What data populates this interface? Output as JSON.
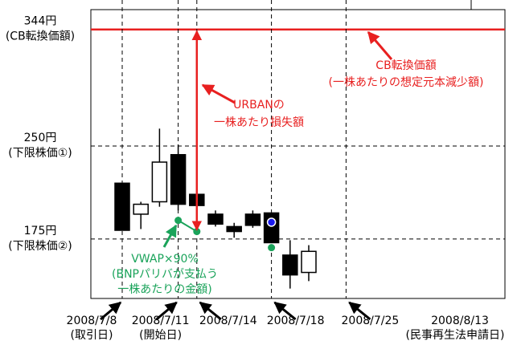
{
  "chart_data": {
    "type": "candlestick",
    "categories": [
      "2008/7/8",
      null,
      null,
      "2008/7/11",
      "2008/7/14",
      null,
      null,
      null,
      "2008/7/18",
      null,
      null,
      null,
      "2008/7/25"
    ],
    "category_notes": [
      "(取引日)",
      null,
      null,
      "(開始日)",
      null,
      null,
      null,
      null,
      null,
      null,
      null,
      null,
      null
    ],
    "open": [
      220,
      195,
      205,
      243,
      211,
      195,
      185,
      195,
      196,
      162,
      148,
      null,
      null
    ],
    "high": [
      220,
      205,
      264,
      251,
      211,
      198,
      188,
      198,
      196,
      174,
      170,
      null,
      null
    ],
    "low": [
      182,
      183,
      201,
      198,
      202,
      185,
      176,
      184,
      172,
      135,
      141,
      null,
      null
    ],
    "close": [
      182,
      203,
      237,
      203,
      202,
      187,
      181,
      186,
      172,
      146,
      165,
      null,
      null
    ],
    "up_color": "#ffffff",
    "down_color": "#000000",
    "series": [
      {
        "color": "#1aa35a",
        "values": [
          null,
          null,
          null,
          190,
          181,
          null,
          null,
          null,
          168,
          null,
          null,
          null,
          null
        ]
      },
      {
        "color": "#1a1aee",
        "values": [
          null,
          null,
          null,
          null,
          null,
          null,
          null,
          null,
          188.5,
          null,
          null,
          null,
          null
        ]
      }
    ],
    "ylim": [
      127,
      360
    ],
    "yticks": [
      {
        "value": 344,
        "label": "344円"
      },
      {
        "value": 250,
        "label": "250円"
      },
      {
        "value": 175,
        "label": "175円"
      }
    ],
    "ytick_notes": [
      "(CB転換価額)",
      "(下限株価①)",
      "(下限株価②)"
    ],
    "ytick_colors": [
      "#e82020",
      "#000000",
      "#000000"
    ],
    "ytick_dashed": [
      false,
      true,
      true
    ],
    "extra_date": {
      "label": "2008/8/13",
      "note": "(民事再生法申請日)"
    },
    "annotations": [
      {
        "lines": [
          "CB転換価額",
          "(一株あたりの想定元本減少額)"
        ],
        "color": "#e82020"
      },
      {
        "lines": [
          "URBANの",
          "一株あたり損失額"
        ],
        "color": "#e82020"
      },
      {
        "lines": [
          "VWAP×90%",
          "(BNPパリバが支払う",
          "一株あたりの金額)"
        ],
        "color": "#1aa35a"
      }
    ]
  }
}
